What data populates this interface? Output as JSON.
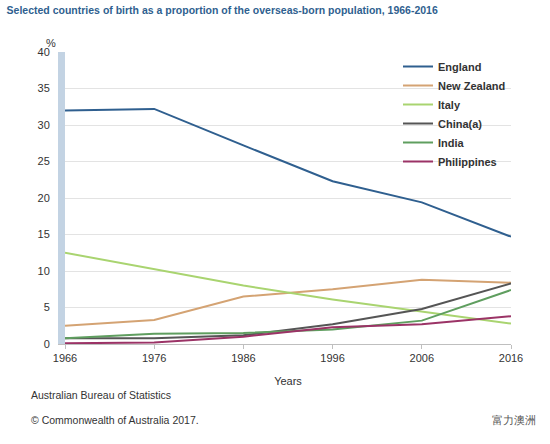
{
  "chart_data": {
    "type": "line",
    "title": "Selected countries of birth as a proportion of the overseas-born population, 1966-2016",
    "x_label": "Years",
    "y_label": "%",
    "annotations": [
      "Australian Bureau of Statistics",
      "© Commonwealth of Australia 2017.",
      "富力澳洲"
    ],
    "x": [
      1966,
      1976,
      1986,
      1996,
      2006,
      2016
    ],
    "xlim": [
      1966,
      2016
    ],
    "xticks": [
      1966,
      1976,
      1986,
      1996,
      2006,
      2016
    ],
    "ylim": [
      0,
      40
    ],
    "yticks": [
      0,
      5,
      10,
      15,
      20,
      25,
      30,
      35,
      40
    ],
    "grid": true,
    "legend": "top right",
    "series": [
      {
        "name": "England",
        "color": "#2f5f8f",
        "values": [
          32.0,
          32.2,
          27.2,
          22.3,
          19.4,
          14.7
        ]
      },
      {
        "name": "New Zealand",
        "color": "#d4a373",
        "values": [
          2.5,
          3.3,
          6.5,
          7.5,
          8.8,
          8.4
        ]
      },
      {
        "name": "Italy",
        "color": "#a9d470",
        "values": [
          12.5,
          10.3,
          8.0,
          6.1,
          4.5,
          2.8
        ]
      },
      {
        "name": "China(a)",
        "color": "#555555",
        "values": [
          0.8,
          0.8,
          1.2,
          2.7,
          4.8,
          8.3
        ]
      },
      {
        "name": "India",
        "color": "#5f9e5f",
        "values": [
          0.8,
          1.4,
          1.5,
          2.0,
          3.2,
          7.4
        ]
      },
      {
        "name": "Philippines",
        "color": "#9b3366",
        "values": [
          0.1,
          0.2,
          1.0,
          2.3,
          2.7,
          3.8
        ]
      }
    ]
  }
}
